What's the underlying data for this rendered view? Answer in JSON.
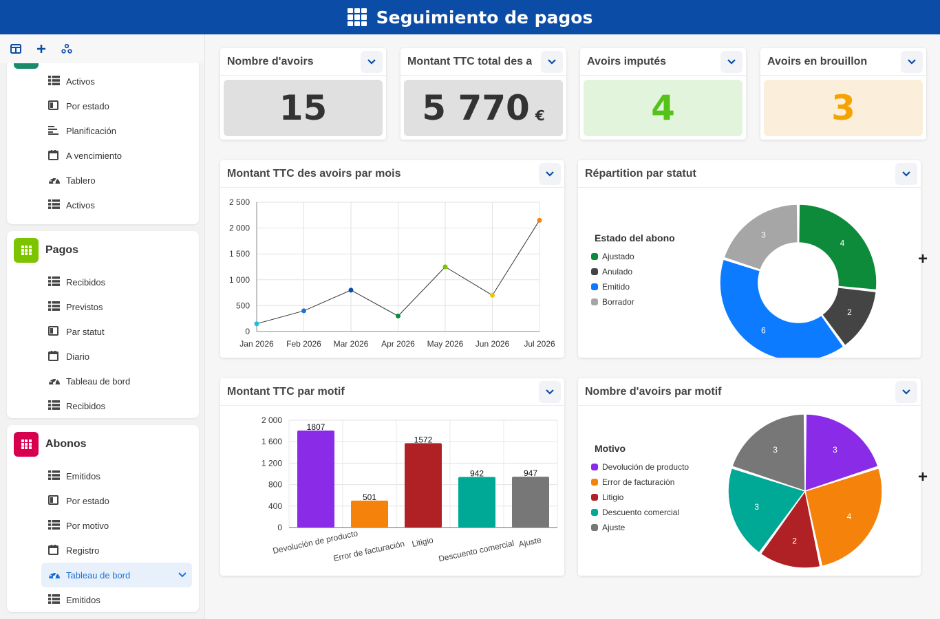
{
  "header": {
    "title": "Seguimiento de pagos",
    "icon": "apps-grid-icon"
  },
  "sidebar": {
    "toolbar": [
      {
        "name": "panel-toggle-icon"
      },
      {
        "name": "add-icon"
      },
      {
        "name": "share-icon"
      }
    ],
    "group0": {
      "items": [
        {
          "label": "Activos",
          "icon": "list-icon"
        },
        {
          "label": "Por estado",
          "icon": "kanban-icon"
        },
        {
          "label": "Planificación",
          "icon": "planning-icon"
        },
        {
          "label": "A vencimiento",
          "icon": "calendar-icon"
        },
        {
          "label": "Tablero",
          "icon": "gauge-icon"
        },
        {
          "label": "Activos",
          "icon": "list-icon"
        }
      ]
    },
    "pagos": {
      "title": "Pagos",
      "color": "#7dc400",
      "items": [
        {
          "label": "Recibidos",
          "icon": "list-icon"
        },
        {
          "label": "Previstos",
          "icon": "list-icon"
        },
        {
          "label": "Par statut",
          "icon": "kanban-icon"
        },
        {
          "label": "Diario",
          "icon": "calendar-icon"
        },
        {
          "label": "Tableau de bord",
          "icon": "gauge-icon"
        },
        {
          "label": "Recibidos",
          "icon": "list-icon"
        }
      ]
    },
    "abonos": {
      "title": "Abonos",
      "color": "#d6004f",
      "items": [
        {
          "label": "Emitidos",
          "icon": "list-icon"
        },
        {
          "label": "Por estado",
          "icon": "kanban-icon"
        },
        {
          "label": "Por motivo",
          "icon": "list-icon"
        },
        {
          "label": "Registro",
          "icon": "calendar-icon"
        },
        {
          "label": "Tableau de bord",
          "icon": "gauge-icon",
          "active": true
        },
        {
          "label": "Emitidos",
          "icon": "list-icon"
        }
      ]
    }
  },
  "kpis": [
    {
      "title": "Nombre d'avoirs",
      "value": "15",
      "unit": "",
      "bg": "#e0e0e0",
      "color": "#333333"
    },
    {
      "title": "Montant TTC total des av",
      "value": "5 770",
      "unit": "€",
      "bg": "#e0e0e0",
      "color": "#333333"
    },
    {
      "title": "Avoirs imputés",
      "value": "4",
      "unit": "",
      "bg": "#e2f5dc",
      "color": "#55c21a"
    },
    {
      "title": "Avoirs en brouillon",
      "value": "3",
      "unit": "",
      "bg": "#fbeedb",
      "color": "#f5a300"
    }
  ],
  "widgets": {
    "line_title": "Montant TTC des avoirs par mois",
    "donut_title": "Répartition par statut",
    "bar_title": "Montant TTC par motif",
    "pie_title": "Nombre d'avoirs par motif"
  },
  "chart_data": [
    {
      "type": "line",
      "title": "Montant TTC des avoirs par mois",
      "x": [
        "Jan 2026",
        "Feb 2026",
        "Mar 2026",
        "Apr 2026",
        "May 2026",
        "Jun 2026",
        "Jul 2026"
      ],
      "values": [
        150,
        400,
        800,
        300,
        1250,
        700,
        2150
      ],
      "point_colors": [
        "#19c2d8",
        "#1a73d8",
        "#0a4ca6",
        "#0d8a3a",
        "#7dc400",
        "#f5c400",
        "#f5840a"
      ],
      "ylim": [
        0,
        2500
      ],
      "yticks": [
        "0",
        "500",
        "1 000",
        "1 500",
        "2 000",
        "2 500"
      ],
      "grid": true
    },
    {
      "type": "pie",
      "variant": "donut",
      "title": "Répartition par statut",
      "legend_title": "Estado del abono",
      "legend_position": "left",
      "labels": [
        "Ajustado",
        "Anulado",
        "Emitido",
        "Borrador"
      ],
      "values": [
        4,
        2,
        6,
        3
      ],
      "colors": [
        "#0d8a3a",
        "#444444",
        "#0d7bff",
        "#a6a6a6"
      ]
    },
    {
      "type": "bar",
      "title": "Montant TTC par motif",
      "categories": [
        "Devolución de producto",
        "Error de facturación",
        "Litigio",
        "Descuento comercial",
        "Ajuste"
      ],
      "values": [
        1807,
        501,
        1572,
        942,
        947
      ],
      "colors": [
        "#8a2be8",
        "#f5820a",
        "#b02126",
        "#00a896",
        "#777777"
      ],
      "ylim": [
        0,
        2000
      ],
      "yticks": [
        "0",
        "400",
        "800",
        "1 200",
        "1 600",
        "2 000"
      ],
      "grid": true
    },
    {
      "type": "pie",
      "title": "Nombre d'avoirs par motif",
      "legend_title": "Motivo",
      "legend_position": "left",
      "labels": [
        "Devolución de producto",
        "Error de facturación",
        "Litigio",
        "Descuento comercial",
        "Ajuste"
      ],
      "values": [
        3,
        4,
        2,
        3,
        3
      ],
      "colors": [
        "#8a2be8",
        "#f5820a",
        "#b02126",
        "#00a896",
        "#777777"
      ]
    }
  ]
}
